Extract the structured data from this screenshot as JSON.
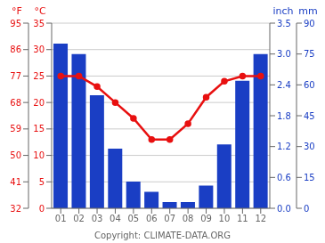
{
  "chart_data": {
    "type": "bar",
    "categories": [
      "01",
      "02",
      "03",
      "04",
      "05",
      "06",
      "07",
      "08",
      "09",
      "10",
      "11",
      "12"
    ],
    "series": [
      {
        "type": "bar",
        "color": "#1a3ec4",
        "axis": "y2",
        "values": [
          80,
          75,
          55,
          29,
          13,
          8,
          3,
          3,
          11,
          31,
          62,
          75
        ]
      },
      {
        "type": "line",
        "color": "#e81010",
        "marker": "circle",
        "values": [
          25,
          25,
          23,
          20,
          17,
          13,
          13,
          16,
          21,
          24,
          25,
          25
        ]
      }
    ],
    "ylabel": "°C",
    "ylabel_f": "°F",
    "ylim": [
      0,
      35
    ],
    "yticks": [
      0,
      5,
      10,
      15,
      20,
      25,
      30,
      35
    ],
    "yticks_f": [
      {
        "value": 0,
        "label": "32"
      },
      {
        "value": 5,
        "label": "41"
      },
      {
        "value": 10,
        "label": "50"
      },
      {
        "value": 15,
        "label": "59"
      },
      {
        "value": 20,
        "label": "68"
      },
      {
        "value": 25,
        "label": "77"
      },
      {
        "value": 30,
        "label": "86"
      },
      {
        "value": 35,
        "label": "95"
      }
    ],
    "y2label": "mm",
    "y2label_inch": "inch",
    "y2lim": [
      0,
      90
    ],
    "y2ticks": [
      0,
      15,
      30,
      45,
      60,
      75,
      90
    ],
    "y2ticks_inch": [
      {
        "value": 0,
        "label": "0.0"
      },
      {
        "value": 15,
        "label": "0.6"
      },
      {
        "value": 30,
        "label": "1.2"
      },
      {
        "value": 45,
        "label": "1.8"
      },
      {
        "value": 60,
        "label": "2.4"
      },
      {
        "value": 75,
        "label": "3.0"
      },
      {
        "value": 90,
        "label": "3.5"
      }
    ],
    "grid": true,
    "annotations": [
      "Copyright: CLIMATE-DATA.ORG"
    ]
  }
}
